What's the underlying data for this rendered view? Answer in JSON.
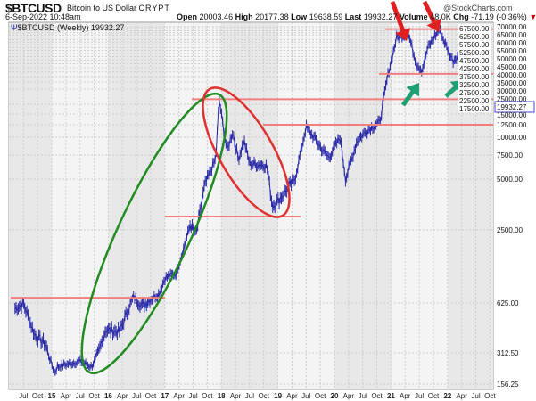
{
  "header": {
    "symbol": "$BTCUSD",
    "name": "Bitcoin to US Dollar",
    "exchange": "CRYPT",
    "date": "6-Sep-2022 10:48am",
    "brand": "@StockCharts.com",
    "open_label": "Open",
    "open": "20003.46",
    "high_label": "High",
    "high": "20177.38",
    "low_label": "Low",
    "low": "19638.59",
    "last_label": "Last",
    "last": "19932.27",
    "volume_label": "Volume",
    "volume": "48.0K",
    "chg_label": "Chg",
    "chg": "-71.19 (-0.36%)"
  },
  "legend": {
    "text": "$BTCUSD (Weekly) 19932.27"
  },
  "chart_data": {
    "type": "line",
    "title": "",
    "xlabel": "",
    "ylabel": "",
    "y_scale": "log",
    "grid": true,
    "legend": "top-left",
    "y_ticks": [
      "156.25",
      "312.50",
      "625.00",
      "2500.00",
      "5000.00",
      "7500.00",
      "10000.00",
      "12500.00",
      "15000.00",
      "17500.00",
      "22500.00",
      "25000.00",
      "27500.00",
      "30000.00",
      "32500.00",
      "35000.00",
      "37500.00",
      "40000.00",
      "42500.00",
      "45000.00",
      "47500.00",
      "50000.00",
      "52500.00",
      "55000.00",
      "57500.00",
      "60000.00",
      "62500.00",
      "65000.00",
      "67500.00",
      "70000.00"
    ],
    "last_value_label": "19932.27",
    "x_ticks": [
      [
        "Jul",
        2014.5
      ],
      [
        "Oct",
        2014.75
      ],
      [
        "15",
        2015
      ],
      [
        "Apr",
        2015.25
      ],
      [
        "Jul",
        2015.5
      ],
      [
        "Oct",
        2015.75
      ],
      [
        "16",
        2016
      ],
      [
        "Apr",
        2016.25
      ],
      [
        "Jul",
        2016.5
      ],
      [
        "Oct",
        2016.75
      ],
      [
        "17",
        2017
      ],
      [
        "Apr",
        2017.25
      ],
      [
        "Jul",
        2017.5
      ],
      [
        "Oct",
        2017.75
      ],
      [
        "18",
        2018
      ],
      [
        "Apr",
        2018.25
      ],
      [
        "Jul",
        2018.5
      ],
      [
        "Oct",
        2018.75
      ],
      [
        "19",
        2019
      ],
      [
        "Apr",
        2019.25
      ],
      [
        "Jul",
        2019.5
      ],
      [
        "Oct",
        2019.75
      ],
      [
        "20",
        2020
      ],
      [
        "Apr",
        2020.25
      ],
      [
        "Jul",
        2020.5
      ],
      [
        "Oct",
        2020.75
      ],
      [
        "21",
        2021
      ],
      [
        "Apr",
        2021.25
      ],
      [
        "Jul",
        2021.5
      ],
      [
        "Oct",
        2021.75
      ],
      [
        "22",
        2022
      ],
      [
        "Apr",
        2022.25
      ],
      [
        "Jul",
        2022.5
      ],
      [
        "Oct",
        2022.75
      ]
    ],
    "series": [
      {
        "x": [
          2014.35,
          2014.5,
          2014.7,
          2014.9,
          2015.05,
          2015.1,
          2015.5,
          2015.7,
          2015.85,
          2015.95,
          2016.2,
          2016.45,
          2016.6,
          2016.9,
          2017.0,
          2017.2,
          2017.45,
          2017.55,
          2017.7,
          2017.9,
          2017.96,
          2018.1,
          2018.2,
          2018.3,
          2018.4,
          2018.5,
          2018.8,
          2018.9,
          2019.0,
          2019.3,
          2019.5,
          2019.8,
          2019.9,
          2020.1,
          2020.2,
          2020.4,
          2020.6,
          2020.8,
          2020.95,
          2021.1,
          2021.3,
          2021.45,
          2021.55,
          2021.65,
          2021.85,
          2022.0,
          2022.1,
          2022.25,
          2022.35,
          2022.45,
          2022.55,
          2022.6,
          2022.68
        ],
        "y": [
          580,
          620,
          400,
          350,
          200,
          230,
          260,
          230,
          330,
          430,
          420,
          700,
          600,
          750,
          1000,
          1100,
          2700,
          2300,
          4500,
          7000,
          19000,
          8000,
          11000,
          7000,
          9500,
          6500,
          6300,
          3500,
          3700,
          5000,
          12000,
          8000,
          7200,
          10000,
          5000,
          9500,
          11500,
          13000,
          29000,
          57000,
          63000,
          35000,
          31000,
          47000,
          67000,
          46000,
          37000,
          45000,
          38000,
          21000,
          19500,
          23500,
          19932
        ]
      }
    ],
    "annotations": {
      "resistance_levels": [
        690,
        3000,
        12500,
        19000,
        29000,
        67000
      ],
      "line_color": "#f08080",
      "ellipse_colors": [
        "#228b22",
        "#e03030"
      ],
      "arrow_colors": [
        "#e02020",
        "#20a070"
      ]
    },
    "colors": {
      "price": "#2a2aa8",
      "band": "#e8e8e8"
    }
  }
}
